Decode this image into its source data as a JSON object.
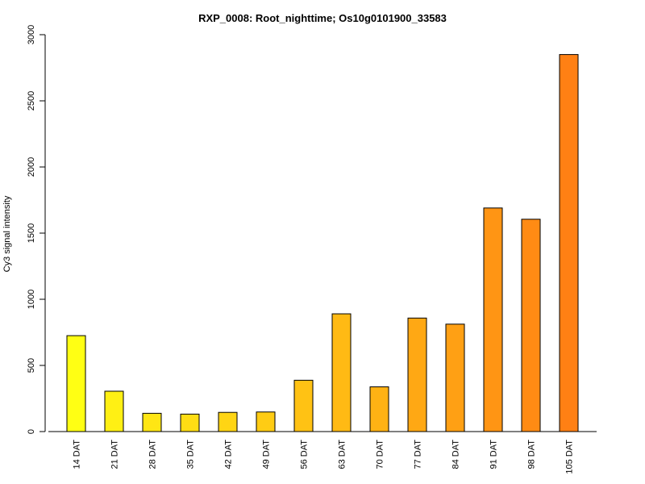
{
  "chart_data": {
    "type": "bar",
    "title": "RXP_0008: Root_nighttime; Os10g0101900_33583",
    "xlabel": "",
    "ylabel": "Cy3 signal intensity",
    "ylim": [
      0,
      3000
    ],
    "yticks": [
      0,
      500,
      1000,
      1500,
      2000,
      2500,
      3000
    ],
    "grid": false,
    "categories": [
      "14 DAT",
      "21 DAT",
      "28 DAT",
      "35 DAT",
      "42 DAT",
      "49 DAT",
      "56 DAT",
      "63 DAT",
      "70 DAT",
      "77 DAT",
      "84 DAT",
      "91 DAT",
      "98 DAT",
      "105 DAT"
    ],
    "values": [
      725,
      305,
      138,
      132,
      145,
      148,
      388,
      890,
      338,
      858,
      812,
      1690,
      1605,
      2850
    ],
    "bar_colors": [
      "#FFFF14",
      "#FFF014",
      "#FFE614",
      "#FFDD14",
      "#FFD514",
      "#FFCC14",
      "#FFC214",
      "#FFBA14",
      "#FFB214",
      "#FFA814",
      "#FFA014",
      "#FF9514",
      "#FF8B14",
      "#FF8014"
    ]
  }
}
